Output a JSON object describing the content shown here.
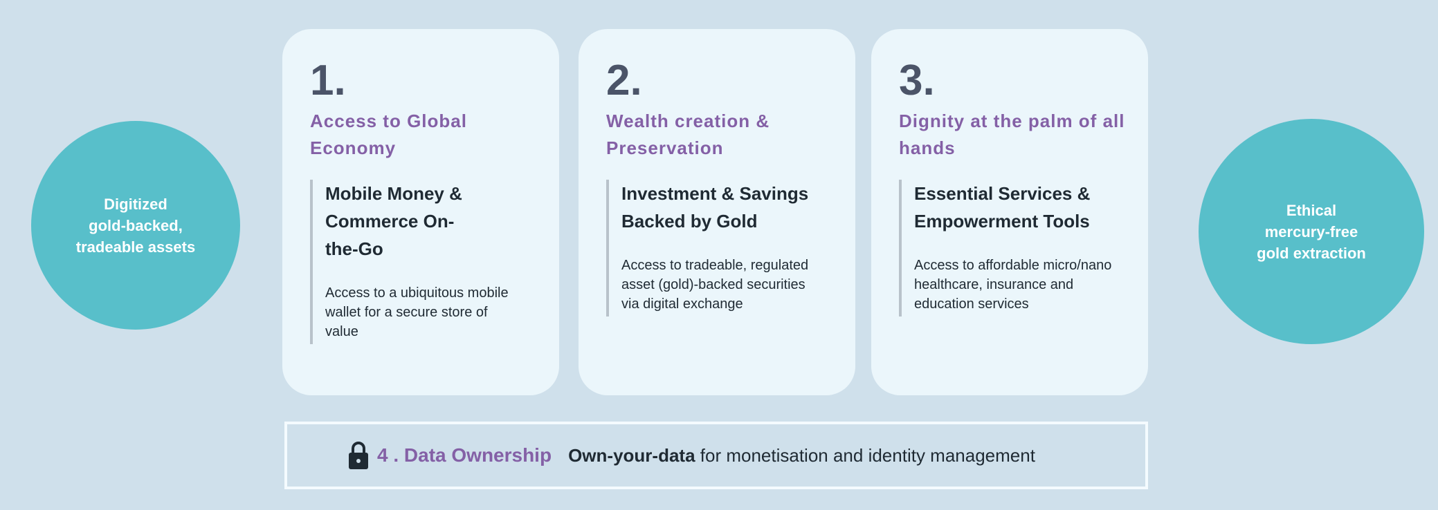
{
  "colors": {
    "background": "#cfe0eb",
    "circle": "#58bfca",
    "card": "#ebf6fb",
    "heading": "#8460a6",
    "text": "#1f2a33"
  },
  "left_circle": {
    "text": "Digitized\ngold-backed,\ntradeable assets"
  },
  "right_circle": {
    "text": "Ethical\nmercury-free\ngold extraction"
  },
  "cards": [
    {
      "number": "1.",
      "heading": "Access to Global Economy",
      "subheading": "Mobile Money & Commerce On-the-Go",
      "description": "Access to a ubiquitous mobile wallet for a secure store of value"
    },
    {
      "number": "2.",
      "heading": "Wealth creation & Preservation",
      "subheading": "Investment & Savings Backed by Gold",
      "description": "Access to tradeable, regulated asset (gold)-backed securities via digital exchange"
    },
    {
      "number": "3.",
      "heading": "Dignity at the palm of all hands",
      "subheading": "Essential Services & Empowerment Tools",
      "description": "Access to affordable micro/nano healthcare, insurance and education services"
    }
  ],
  "bottom": {
    "icon": "lock-icon",
    "title": "4 . Data Ownership",
    "bold": "Own-your-data",
    "rest": " for monetisation and identity management"
  }
}
